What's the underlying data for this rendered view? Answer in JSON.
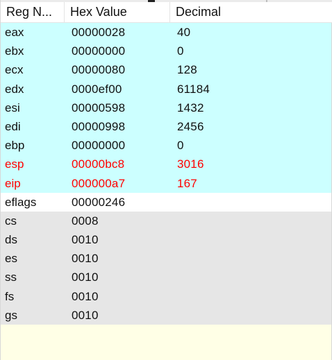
{
  "header": {
    "name": "Reg N...",
    "hex": "Hex Value",
    "decimal": "Decimal"
  },
  "registers": [
    {
      "name": "eax",
      "hex": "00000028",
      "dec": "40",
      "group": "general",
      "changed": false
    },
    {
      "name": "ebx",
      "hex": "00000000",
      "dec": "0",
      "group": "general",
      "changed": false
    },
    {
      "name": "ecx",
      "hex": "00000080",
      "dec": "128",
      "group": "general",
      "changed": false
    },
    {
      "name": "edx",
      "hex": "0000ef00",
      "dec": "61184",
      "group": "general",
      "changed": false
    },
    {
      "name": "esi",
      "hex": "00000598",
      "dec": "1432",
      "group": "general",
      "changed": false
    },
    {
      "name": "edi",
      "hex": "00000998",
      "dec": "2456",
      "group": "general",
      "changed": false
    },
    {
      "name": "ebp",
      "hex": "00000000",
      "dec": "0",
      "group": "general",
      "changed": false
    },
    {
      "name": "esp",
      "hex": "00000bc8",
      "dec": "3016",
      "group": "general",
      "changed": true
    },
    {
      "name": "eip",
      "hex": "000000a7",
      "dec": "167",
      "group": "general",
      "changed": true
    },
    {
      "name": "eflags",
      "hex": "00000246",
      "dec": "",
      "group": "flags",
      "changed": false
    },
    {
      "name": "cs",
      "hex": "0008",
      "dec": "",
      "group": "segment",
      "changed": false
    },
    {
      "name": "ds",
      "hex": "0010",
      "dec": "",
      "group": "segment",
      "changed": false
    },
    {
      "name": "es",
      "hex": "0010",
      "dec": "",
      "group": "segment",
      "changed": false
    },
    {
      "name": "ss",
      "hex": "0010",
      "dec": "",
      "group": "segment",
      "changed": false
    },
    {
      "name": "fs",
      "hex": "0010",
      "dec": "",
      "group": "segment",
      "changed": false
    },
    {
      "name": "gs",
      "hex": "0010",
      "dec": "",
      "group": "segment",
      "changed": false
    }
  ],
  "colors": {
    "general_bg": "#ccffff",
    "flags_bg": "#ffffff",
    "segment_bg": "#e6e6e6",
    "changed_text": "#ff0000",
    "panel_bg": "#ffffe6"
  }
}
